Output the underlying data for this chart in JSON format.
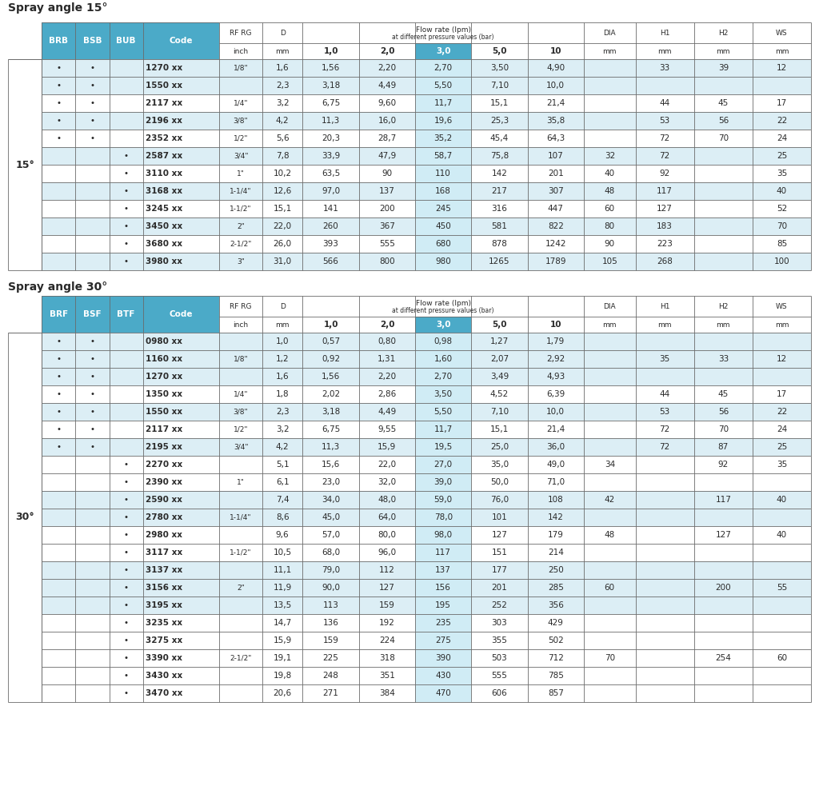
{
  "title1": "Spray angle 15°",
  "title2": "Spray angle 30°",
  "header_bg": "#4baac8",
  "row_bg_light": "#dceef5",
  "row_bg_white": "#ffffff",
  "highlight_col": "#4baac8",
  "highlight_col_data": "#d0ecf5",
  "border_color": "#6a6a6a",
  "text_color": "#2a2a2a",
  "table1_col1_label": "BRB",
  "table1_col2_label": "BSB",
  "table1_col3_label": "BUB",
  "table2_col1_label": "BRF",
  "table2_col2_label": "BSF",
  "table2_col3_label": "BTF",
  "table1": {
    "angle_label": "15°",
    "rows": [
      {
        "c1": "•",
        "c2": "•",
        "c3": "",
        "code": "1270 xx",
        "inch": "1/8\"",
        "mm": "1,6",
        "f10": "1,56",
        "f20": "2,20",
        "f30": "2,70",
        "f50": "3,50",
        "f100": "4,90",
        "DIA": "",
        "H1": "33",
        "H2": "39",
        "WS": "12",
        "bg": 0
      },
      {
        "c1": "•",
        "c2": "•",
        "c3": "",
        "code": "1550 xx",
        "inch": "",
        "mm": "2,3",
        "f10": "3,18",
        "f20": "4,49",
        "f30": "5,50",
        "f50": "7,10",
        "f100": "10,0",
        "DIA": "",
        "H1": "",
        "H2": "",
        "WS": "",
        "bg": 0
      },
      {
        "c1": "•",
        "c2": "•",
        "c3": "",
        "code": "2117 xx",
        "inch": "1/4\"",
        "mm": "3,2",
        "f10": "6,75",
        "f20": "9,60",
        "f30": "11,7",
        "f50": "15,1",
        "f100": "21,4",
        "DIA": "",
        "H1": "44",
        "H2": "45",
        "WS": "17",
        "bg": 1
      },
      {
        "c1": "•",
        "c2": "•",
        "c3": "",
        "code": "2196 xx",
        "inch": "3/8\"",
        "mm": "4,2",
        "f10": "11,3",
        "f20": "16,0",
        "f30": "19,6",
        "f50": "25,3",
        "f100": "35,8",
        "DIA": "",
        "H1": "53",
        "H2": "56",
        "WS": "22",
        "bg": 0
      },
      {
        "c1": "•",
        "c2": "•",
        "c3": "",
        "code": "2352 xx",
        "inch": "1/2\"",
        "mm": "5,6",
        "f10": "20,3",
        "f20": "28,7",
        "f30": "35,2",
        "f50": "45,4",
        "f100": "64,3",
        "DIA": "",
        "H1": "72",
        "H2": "70",
        "WS": "24",
        "bg": 1
      },
      {
        "c1": "",
        "c2": "",
        "c3": "•",
        "code": "2587 xx",
        "inch": "3/4\"",
        "mm": "7,8",
        "f10": "33,9",
        "f20": "47,9",
        "f30": "58,7",
        "f50": "75,8",
        "f100": "107",
        "DIA": "32",
        "H1": "72",
        "H2": "",
        "WS": "25",
        "bg": 0
      },
      {
        "c1": "",
        "c2": "",
        "c3": "•",
        "code": "3110 xx",
        "inch": "1\"",
        "mm": "10,2",
        "f10": "63,5",
        "f20": "90",
        "f30": "110",
        "f50": "142",
        "f100": "201",
        "DIA": "40",
        "H1": "92",
        "H2": "",
        "WS": "35",
        "bg": 1
      },
      {
        "c1": "",
        "c2": "",
        "c3": "•",
        "code": "3168 xx",
        "inch": "1-1/4\"",
        "mm": "12,6",
        "f10": "97,0",
        "f20": "137",
        "f30": "168",
        "f50": "217",
        "f100": "307",
        "DIA": "48",
        "H1": "117",
        "H2": "",
        "WS": "40",
        "bg": 0
      },
      {
        "c1": "",
        "c2": "",
        "c3": "•",
        "code": "3245 xx",
        "inch": "1-1/2\"",
        "mm": "15,1",
        "f10": "141",
        "f20": "200",
        "f30": "245",
        "f50": "316",
        "f100": "447",
        "DIA": "60",
        "H1": "127",
        "H2": "",
        "WS": "52",
        "bg": 1
      },
      {
        "c1": "",
        "c2": "",
        "c3": "•",
        "code": "3450 xx",
        "inch": "2\"",
        "mm": "22,0",
        "f10": "260",
        "f20": "367",
        "f30": "450",
        "f50": "581",
        "f100": "822",
        "DIA": "80",
        "H1": "183",
        "H2": "",
        "WS": "70",
        "bg": 0
      },
      {
        "c1": "",
        "c2": "",
        "c3": "•",
        "code": "3680 xx",
        "inch": "2-1/2\"",
        "mm": "26,0",
        "f10": "393",
        "f20": "555",
        "f30": "680",
        "f50": "878",
        "f100": "1242",
        "DIA": "90",
        "H1": "223",
        "H2": "",
        "WS": "85",
        "bg": 1
      },
      {
        "c1": "",
        "c2": "",
        "c3": "•",
        "code": "3980 xx",
        "inch": "3\"",
        "mm": "31,0",
        "f10": "566",
        "f20": "800",
        "f30": "980",
        "f50": "1265",
        "f100": "1789",
        "DIA": "105",
        "H1": "268",
        "H2": "",
        "WS": "100",
        "bg": 0
      }
    ]
  },
  "table2": {
    "angle_label": "30°",
    "rows": [
      {
        "c1": "•",
        "c2": "•",
        "c3": "",
        "code": "0980 xx",
        "inch": "",
        "mm": "1,0",
        "f10": "0,57",
        "f20": "0,80",
        "f30": "0,98",
        "f50": "1,27",
        "f100": "1,79",
        "DIA": "",
        "H1": "",
        "H2": "",
        "WS": "",
        "bg": 0
      },
      {
        "c1": "•",
        "c2": "•",
        "c3": "",
        "code": "1160 xx",
        "inch": "1/8\"",
        "mm": "1,2",
        "f10": "0,92",
        "f20": "1,31",
        "f30": "1,60",
        "f50": "2,07",
        "f100": "2,92",
        "DIA": "",
        "H1": "35",
        "H2": "33",
        "WS": "12",
        "bg": 0
      },
      {
        "c1": "•",
        "c2": "•",
        "c3": "",
        "code": "1270 xx",
        "inch": "",
        "mm": "1,6",
        "f10": "1,56",
        "f20": "2,20",
        "f30": "2,70",
        "f50": "3,49",
        "f100": "4,93",
        "DIA": "",
        "H1": "",
        "H2": "",
        "WS": "",
        "bg": 0
      },
      {
        "c1": "•",
        "c2": "•",
        "c3": "",
        "code": "1350 xx",
        "inch": "1/4\"",
        "mm": "1,8",
        "f10": "2,02",
        "f20": "2,86",
        "f30": "3,50",
        "f50": "4,52",
        "f100": "6,39",
        "DIA": "",
        "H1": "44",
        "H2": "45",
        "WS": "17",
        "bg": 1
      },
      {
        "c1": "•",
        "c2": "•",
        "c3": "",
        "code": "1550 xx",
        "inch": "3/8\"",
        "mm": "2,3",
        "f10": "3,18",
        "f20": "4,49",
        "f30": "5,50",
        "f50": "7,10",
        "f100": "10,0",
        "DIA": "",
        "H1": "53",
        "H2": "56",
        "WS": "22",
        "bg": 0
      },
      {
        "c1": "•",
        "c2": "•",
        "c3": "",
        "code": "2117 xx",
        "inch": "1/2\"",
        "mm": "3,2",
        "f10": "6,75",
        "f20": "9,55",
        "f30": "11,7",
        "f50": "15,1",
        "f100": "21,4",
        "DIA": "",
        "H1": "72",
        "H2": "70",
        "WS": "24",
        "bg": 1
      },
      {
        "c1": "•",
        "c2": "•",
        "c3": "",
        "code": "2195 xx",
        "inch": "3/4\"",
        "mm": "4,2",
        "f10": "11,3",
        "f20": "15,9",
        "f30": "19,5",
        "f50": "25,0",
        "f100": "36,0",
        "DIA": "",
        "H1": "72",
        "H2": "87",
        "WS": "25",
        "bg": 0
      },
      {
        "c1": "",
        "c2": "",
        "c3": "•",
        "code": "2270 xx",
        "inch": "",
        "mm": "5,1",
        "f10": "15,6",
        "f20": "22,0",
        "f30": "27,0",
        "f50": "35,0",
        "f100": "49,0",
        "DIA": "34",
        "H1": "",
        "H2": "92",
        "WS": "35",
        "bg": 1
      },
      {
        "c1": "",
        "c2": "",
        "c3": "•",
        "code": "2390 xx",
        "inch": "1\"",
        "mm": "6,1",
        "f10": "23,0",
        "f20": "32,0",
        "f30": "39,0",
        "f50": "50,0",
        "f100": "71,0",
        "DIA": "",
        "H1": "",
        "H2": "",
        "WS": "",
        "bg": 1
      },
      {
        "c1": "",
        "c2": "",
        "c3": "•",
        "code": "2590 xx",
        "inch": "",
        "mm": "7,4",
        "f10": "34,0",
        "f20": "48,0",
        "f30": "59,0",
        "f50": "76,0",
        "f100": "108",
        "DIA": "42",
        "H1": "",
        "H2": "117",
        "WS": "40",
        "bg": 0
      },
      {
        "c1": "",
        "c2": "",
        "c3": "•",
        "code": "2780 xx",
        "inch": "1-1/4\"",
        "mm": "8,6",
        "f10": "45,0",
        "f20": "64,0",
        "f30": "78,0",
        "f50": "101",
        "f100": "142",
        "DIA": "",
        "H1": "",
        "H2": "",
        "WS": "",
        "bg": 0
      },
      {
        "c1": "",
        "c2": "",
        "c3": "•",
        "code": "2980 xx",
        "inch": "",
        "mm": "9,6",
        "f10": "57,0",
        "f20": "80,0",
        "f30": "98,0",
        "f50": "127",
        "f100": "179",
        "DIA": "48",
        "H1": "",
        "H2": "127",
        "WS": "40",
        "bg": 1
      },
      {
        "c1": "",
        "c2": "",
        "c3": "•",
        "code": "3117 xx",
        "inch": "1-1/2\"",
        "mm": "10,5",
        "f10": "68,0",
        "f20": "96,0",
        "f30": "117",
        "f50": "151",
        "f100": "214",
        "DIA": "",
        "H1": "",
        "H2": "",
        "WS": "",
        "bg": 1
      },
      {
        "c1": "",
        "c2": "",
        "c3": "•",
        "code": "3137 xx",
        "inch": "",
        "mm": "11,1",
        "f10": "79,0",
        "f20": "112",
        "f30": "137",
        "f50": "177",
        "f100": "250",
        "DIA": "",
        "H1": "",
        "H2": "",
        "WS": "",
        "bg": 0
      },
      {
        "c1": "",
        "c2": "",
        "c3": "•",
        "code": "3156 xx",
        "inch": "2\"",
        "mm": "11,9",
        "f10": "90,0",
        "f20": "127",
        "f30": "156",
        "f50": "201",
        "f100": "285",
        "DIA": "60",
        "H1": "",
        "H2": "200",
        "WS": "55",
        "bg": 0
      },
      {
        "c1": "",
        "c2": "",
        "c3": "•",
        "code": "3195 xx",
        "inch": "",
        "mm": "13,5",
        "f10": "113",
        "f20": "159",
        "f30": "195",
        "f50": "252",
        "f100": "356",
        "DIA": "",
        "H1": "",
        "H2": "",
        "WS": "",
        "bg": 0
      },
      {
        "c1": "",
        "c2": "",
        "c3": "•",
        "code": "3235 xx",
        "inch": "",
        "mm": "14,7",
        "f10": "136",
        "f20": "192",
        "f30": "235",
        "f50": "303",
        "f100": "429",
        "DIA": "",
        "H1": "",
        "H2": "",
        "WS": "",
        "bg": 1
      },
      {
        "c1": "",
        "c2": "",
        "c3": "•",
        "code": "3275 xx",
        "inch": "",
        "mm": "15,9",
        "f10": "159",
        "f20": "224",
        "f30": "275",
        "f50": "355",
        "f100": "502",
        "DIA": "",
        "H1": "",
        "H2": "",
        "WS": "",
        "bg": 1
      },
      {
        "c1": "",
        "c2": "",
        "c3": "•",
        "code": "3390 xx",
        "inch": "2-1/2\"",
        "mm": "19,1",
        "f10": "225",
        "f20": "318",
        "f30": "390",
        "f50": "503",
        "f100": "712",
        "DIA": "70",
        "H1": "",
        "H2": "254",
        "WS": "60",
        "bg": 1
      },
      {
        "c1": "",
        "c2": "",
        "c3": "•",
        "code": "3430 xx",
        "inch": "",
        "mm": "19,8",
        "f10": "248",
        "f20": "351",
        "f30": "430",
        "f50": "555",
        "f100": "785",
        "DIA": "",
        "H1": "",
        "H2": "",
        "WS": "",
        "bg": 1
      },
      {
        "c1": "",
        "c2": "",
        "c3": "•",
        "code": "3470 xx",
        "inch": "",
        "mm": "20,6",
        "f10": "271",
        "f20": "384",
        "f30": "470",
        "f50": "606",
        "f100": "857",
        "DIA": "",
        "H1": "",
        "H2": "",
        "WS": "",
        "bg": 1
      }
    ]
  }
}
